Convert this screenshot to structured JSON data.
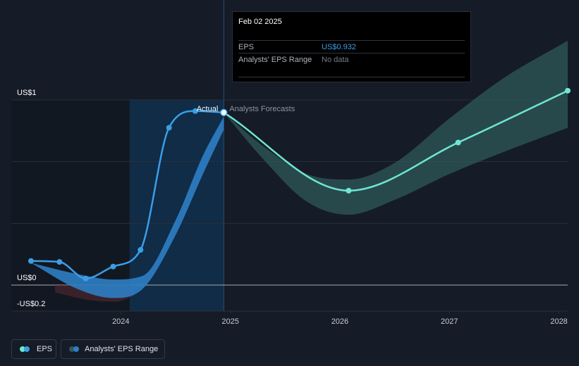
{
  "chart_data": {
    "type": "line",
    "y_tick_labels": [
      "US$1",
      "US$0",
      "-US$0.2"
    ],
    "x_tick_labels": [
      "2024",
      "2025",
      "2026",
      "2027",
      "2028"
    ],
    "ylim": [
      -0.2,
      1.3
    ],
    "xlim": [
      2023.0,
      2028.08
    ],
    "region_labels": {
      "actual": "Actual",
      "forecast": "Analysts Forecasts"
    },
    "eps_actual": {
      "x": [
        2023.18,
        2023.44,
        2023.68,
        2023.93,
        2024.18,
        2024.44,
        2024.68,
        2024.94
      ],
      "y": [
        0.13,
        0.125,
        0.035,
        0.1,
        0.19,
        0.85,
        0.94,
        0.932
      ]
    },
    "eps_forecast": {
      "x": [
        2024.94,
        2026.08,
        2027.08,
        2028.08
      ],
      "y": [
        0.932,
        0.51,
        0.77,
        1.05
      ]
    },
    "range_actual": {
      "x": [
        2023.18,
        2023.6,
        2023.93,
        2024.2,
        2024.5,
        2024.75,
        2024.94
      ],
      "upper": [
        0.12,
        0.06,
        0.03,
        0.05,
        0.35,
        0.7,
        0.91
      ],
      "lower": [
        0.12,
        -0.02,
        -0.07,
        -0.02,
        0.27,
        0.6,
        0.84
      ]
    },
    "range_forecast": {
      "x": [
        2024.94,
        2025.3,
        2025.7,
        2026.08,
        2026.5,
        2027.0,
        2027.5,
        2028.08
      ],
      "upper": [
        0.932,
        0.75,
        0.6,
        0.57,
        0.66,
        0.9,
        1.12,
        1.32
      ],
      "lower": [
        0.932,
        0.68,
        0.45,
        0.38,
        0.46,
        0.6,
        0.72,
        0.85
      ]
    },
    "range_negative": {
      "x": [
        2023.4,
        2023.7,
        2023.95,
        2024.12
      ],
      "lower": [
        -0.04,
        -0.08,
        -0.09,
        -0.06
      ]
    },
    "colors": {
      "eps_actual": "#3a9ee6",
      "eps_forecast": "#6ee6d3",
      "range_actual": "#2e7ec4",
      "range_forecast": "#2f5a59",
      "range_negative": "#5a2a33",
      "actual_band": "#0f2f4d",
      "marker_highlight": "#ffffff"
    }
  },
  "tooltip": {
    "date": "Feb 02 2025",
    "rows": [
      {
        "label": "EPS",
        "value": "US$0.932",
        "value_color": "#3a9ee6"
      },
      {
        "label": "Analysts' EPS Range",
        "value": "No data",
        "value_color": "#767c87"
      }
    ]
  },
  "legend": {
    "items": [
      {
        "label": "EPS",
        "color_a": "#6ee6d3",
        "color_b": "#3a9ee6"
      },
      {
        "label": "Analysts' EPS Range",
        "color_a": "#2f5a59",
        "color_b": "#2e7ec4"
      }
    ]
  }
}
